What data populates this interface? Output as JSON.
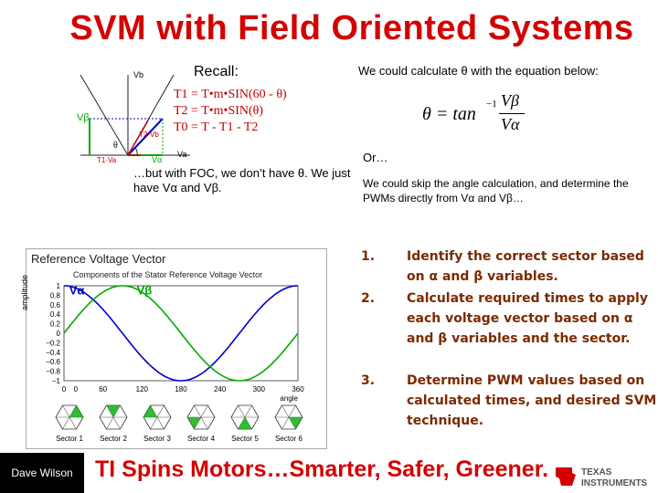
{
  "header": {
    "title": "SVM with Field Oriented Systems"
  },
  "vector_diagram": {
    "axis_vb": "Vb",
    "axis_va": "Va",
    "v_beta_label": "Vβ",
    "v_alpha_label": "Vα",
    "theta_label": "θ",
    "t1_label": "T1·Va",
    "t2_label": "T2·Vb"
  },
  "recall": {
    "label": "Recall:",
    "eq1": "T1 = T•m•SIN(60 - θ)",
    "eq2": "T2 = T•m•SIN(θ)",
    "eq3": "T0 = T - T1 - T2"
  },
  "foc_note": "…but with FOC, we don’t have θ. We just have Vα and Vβ.",
  "right_text": {
    "calc": "We could calculate θ with the equation below:",
    "or": "Or…",
    "skip": "We could skip the angle calculation, and determine the PWMs directly from Vα and Vβ…"
  },
  "equation": {
    "lhs": "θ = tan",
    "exp": "−1",
    "num": "Vβ",
    "den": "Vα"
  },
  "steps": [
    {
      "num": "1.",
      "text": "Identify the correct sector based on α and β variables."
    },
    {
      "num": "2.",
      "text": "Calculate required times to apply each voltage vector based on α and β variables and the sector."
    },
    {
      "num": "3.",
      "text": "Determine PWM values based on calculated times, and desired SVM technique."
    }
  ],
  "chart_title": "Reference Voltage Vector",
  "chart_subtitle": "Components of the Stator Reference Voltage Vector",
  "chart_ylabel": "amplitude",
  "chart_xlabel": "angle",
  "chart_data": {
    "type": "line",
    "title": "Components of the Stator Reference Voltage Vector",
    "xlabel": "angle",
    "ylabel": "amplitude",
    "xlim": [
      0,
      360
    ],
    "ylim": [
      -1,
      1
    ],
    "xticks": [
      "0",
      "0",
      "60",
      "120",
      "180",
      "240",
      "300",
      "360"
    ],
    "yticks": [
      "1",
      "0.8",
      "0.6",
      "0.4",
      "0.2",
      "0",
      "−0.2",
      "−0.4",
      "−0.6",
      "−0.8",
      "−1"
    ],
    "series": [
      {
        "name": "Vα",
        "color": "#0000cc",
        "function": "cos",
        "x": [
          0,
          30,
          60,
          90,
          120,
          150,
          180,
          210,
          240,
          270,
          300,
          330,
          360
        ],
        "y": [
          1,
          0.866,
          0.5,
          0,
          -0.5,
          -0.866,
          -1,
          -0.866,
          -0.5,
          0,
          0.5,
          0.866,
          1
        ]
      },
      {
        "name": "Vβ",
        "color": "#00aa00",
        "function": "sin",
        "x": [
          0,
          30,
          60,
          90,
          120,
          150,
          180,
          210,
          240,
          270,
          300,
          330,
          360
        ],
        "y": [
          0,
          0.5,
          0.866,
          1,
          0.866,
          0.5,
          0,
          -0.5,
          -0.866,
          -1,
          -0.866,
          -0.5,
          0
        ]
      }
    ],
    "sectors": [
      "Sector 1",
      "Sector 2",
      "Sector 3",
      "Sector 4",
      "Sector 5",
      "Sector 6"
    ]
  },
  "footer": {
    "presenter": "Dave Wilson",
    "tagline": "TI Spins Motors…Smarter, Safer, Greener.",
    "logo_line1": "TEXAS",
    "logo_line2": "INSTRUMENTS"
  },
  "colors": {
    "title": "#d40000",
    "list": "#7a2a00",
    "v_alpha": "#0000cc",
    "v_beta": "#00aa00"
  }
}
